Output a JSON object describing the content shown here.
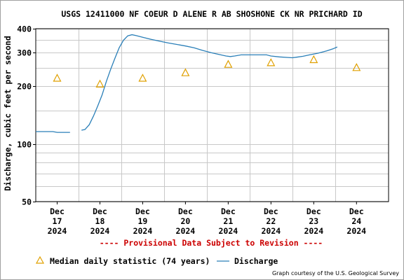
{
  "chart_data": {
    "type": "line",
    "title": "USGS 12411000 NF COEUR D ALENE R AB SHOSHONE CK NR PRICHARD ID",
    "ylabel": "Discharge, cubic feet per second",
    "xlabel": "",
    "y_scale": "log",
    "ylim": [
      50,
      400
    ],
    "y_ticks": [
      {
        "value": 50,
        "label": "50"
      },
      {
        "value": 100,
        "label": "100"
      },
      {
        "value": 200,
        "label": "200"
      },
      {
        "value": 300,
        "label": "300"
      },
      {
        "value": 400,
        "label": "400"
      }
    ],
    "y_minor_gridlines": [
      60,
      70,
      80,
      90,
      150,
      250,
      350
    ],
    "x_range_days": [
      16.5,
      24.75
    ],
    "x_ticks": [
      {
        "day": 17,
        "lines": [
          "Dec",
          "17",
          "2024"
        ]
      },
      {
        "day": 18,
        "lines": [
          "Dec",
          "18",
          "2024"
        ]
      },
      {
        "day": 19,
        "lines": [
          "Dec",
          "19",
          "2024"
        ]
      },
      {
        "day": 20,
        "lines": [
          "Dec",
          "20",
          "2024"
        ]
      },
      {
        "day": 21,
        "lines": [
          "Dec",
          "21",
          "2024"
        ]
      },
      {
        "day": 22,
        "lines": [
          "Dec",
          "22",
          "2024"
        ]
      },
      {
        "day": 23,
        "lines": [
          "Dec",
          "23",
          "2024"
        ]
      },
      {
        "day": 24,
        "lines": [
          "Dec",
          "24",
          "2024"
        ]
      }
    ],
    "grid": true,
    "series": [
      {
        "name": "Discharge",
        "color": "#2a7fb8",
        "style": "step-line",
        "segments": [
          [
            [
              16.5,
              116
            ],
            [
              16.9,
              116
            ],
            [
              17.0,
              115
            ],
            [
              17.3,
              115
            ]
          ],
          [
            [
              17.57,
              118
            ],
            [
              17.65,
              119
            ],
            [
              17.75,
              126
            ],
            [
              17.85,
              140
            ],
            [
              17.95,
              158
            ],
            [
              18.05,
              180
            ],
            [
              18.15,
              212
            ],
            [
              18.25,
              245
            ],
            [
              18.35,
              280
            ],
            [
              18.45,
              318
            ],
            [
              18.55,
              348
            ],
            [
              18.65,
              367
            ],
            [
              18.75,
              372
            ],
            [
              18.85,
              368
            ],
            [
              19.0,
              361
            ],
            [
              19.2,
              352
            ],
            [
              19.4,
              344
            ],
            [
              19.6,
              337
            ],
            [
              19.8,
              331
            ],
            [
              20.0,
              325
            ],
            [
              20.2,
              318
            ],
            [
              20.4,
              308
            ],
            [
              20.6,
              300
            ],
            [
              20.8,
              293
            ],
            [
              20.95,
              288
            ],
            [
              21.05,
              286
            ],
            [
              21.15,
              288
            ],
            [
              21.3,
              292
            ],
            [
              21.5,
              292
            ],
            [
              21.7,
              292
            ],
            [
              21.9,
              292
            ],
            [
              22.0,
              288
            ],
            [
              22.2,
              285
            ],
            [
              22.4,
              283
            ],
            [
              22.5,
              282
            ],
            [
              22.6,
              284
            ],
            [
              22.75,
              287
            ],
            [
              22.9,
              292
            ],
            [
              23.1,
              298
            ],
            [
              23.3,
              306
            ],
            [
              23.45,
              314
            ],
            [
              23.55,
              321
            ]
          ]
        ]
      },
      {
        "name": "Median daily statistic (74 years)",
        "color": "#e0a000",
        "style": "triangle-markers",
        "points": [
          [
            17,
            220
          ],
          [
            18,
            205
          ],
          [
            19,
            220
          ],
          [
            20,
            235
          ],
          [
            21,
            260
          ],
          [
            22,
            265
          ],
          [
            23,
            275
          ],
          [
            24,
            250
          ]
        ]
      }
    ],
    "legend_placement": "bottom-left",
    "legend": [
      {
        "label": "Median daily statistic (74 years)",
        "symbol": "triangle",
        "color": "#e0a000"
      },
      {
        "label": "Discharge",
        "symbol": "line",
        "color": "#2a7fb8"
      }
    ],
    "annotations": {
      "provisional": "---- Provisional Data Subject to Revision ----",
      "provisional_color": "#cc0000",
      "credit": "Graph courtesy of the U.S. Geological Survey"
    }
  }
}
